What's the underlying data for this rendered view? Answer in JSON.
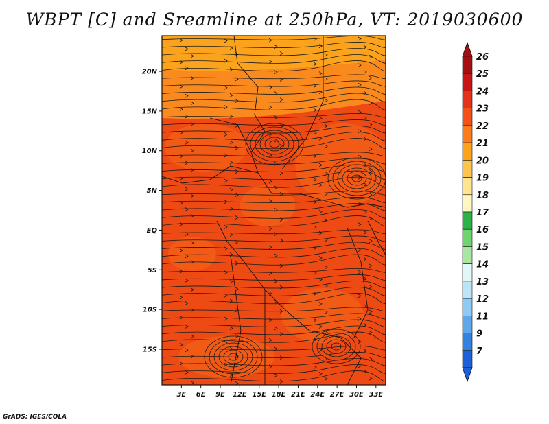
{
  "title": "WBPT [C] and Sreamline at 250hPa, VT: 2019030600",
  "footer": "GrADS: IGES/COLA",
  "map": {
    "lat_ticks": [
      "20N",
      "15N",
      "10N",
      "5N",
      "EQ",
      "5S",
      "10S",
      "15S"
    ],
    "lon_ticks": [
      "3E",
      "6E",
      "9E",
      "12E",
      "15E",
      "18E",
      "21E",
      "24E",
      "27E",
      "30E",
      "33E"
    ],
    "lat_values": [
      20,
      15,
      10,
      5,
      0,
      -5,
      -10,
      -15
    ],
    "lon_values": [
      3,
      6,
      9,
      12,
      15,
      18,
      21,
      24,
      27,
      30,
      33
    ],
    "lon_range": [
      0,
      34.5
    ],
    "lat_range": [
      -19.5,
      24.5
    ]
  },
  "colorbar": {
    "labels": [
      "26",
      "25",
      "24",
      "23",
      "22",
      "21",
      "20",
      "19",
      "18",
      "17",
      "16",
      "15",
      "14",
      "13",
      "12",
      "11",
      "9",
      "7"
    ],
    "colors": [
      "#a50f0f",
      "#c81414",
      "#e4321b",
      "#f4501a",
      "#fb7c19",
      "#fca31e",
      "#fdc54c",
      "#fee58f",
      "#fff7bf",
      "#2bb34a",
      "#6fd46d",
      "#a8e6a2",
      "#e3f6f7",
      "#bde3f6",
      "#8fcaf2",
      "#5fa6ea",
      "#3282e0",
      "#1e60d8"
    ]
  },
  "legend": {
    "top_arrow_color": "#a50f0f",
    "bottom_arrow_color": "#1e60d8"
  },
  "field": {
    "base_color": "#ee4a14",
    "warm_color": "#f56a17",
    "cool_color": "#fa8a1e",
    "north_color": "#fca31e"
  }
}
